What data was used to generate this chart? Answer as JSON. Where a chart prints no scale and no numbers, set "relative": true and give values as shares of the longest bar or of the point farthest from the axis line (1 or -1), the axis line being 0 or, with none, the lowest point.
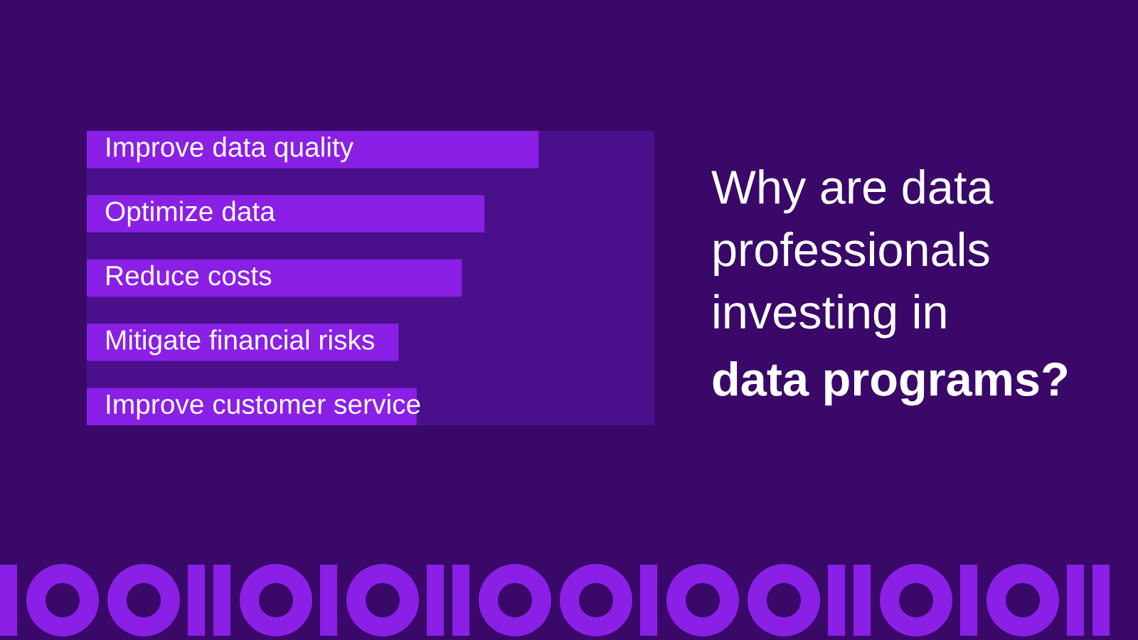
{
  "chart_data": {
    "type": "bar",
    "orientation": "horizontal",
    "relative": true,
    "title": "Why are data\nprofessionals\ninvesting in\ndata programs?",
    "categories": [
      "Improve data quality",
      "Optimize data",
      "Reduce costs",
      "Mitigate financial risks",
      "Improve customer service"
    ],
    "series": [
      {
        "color": "#8a1fe6",
        "values": [
          1,
          0.88,
          0.83,
          0.69,
          0.73
        ]
      }
    ],
    "legend": false
  }
}
